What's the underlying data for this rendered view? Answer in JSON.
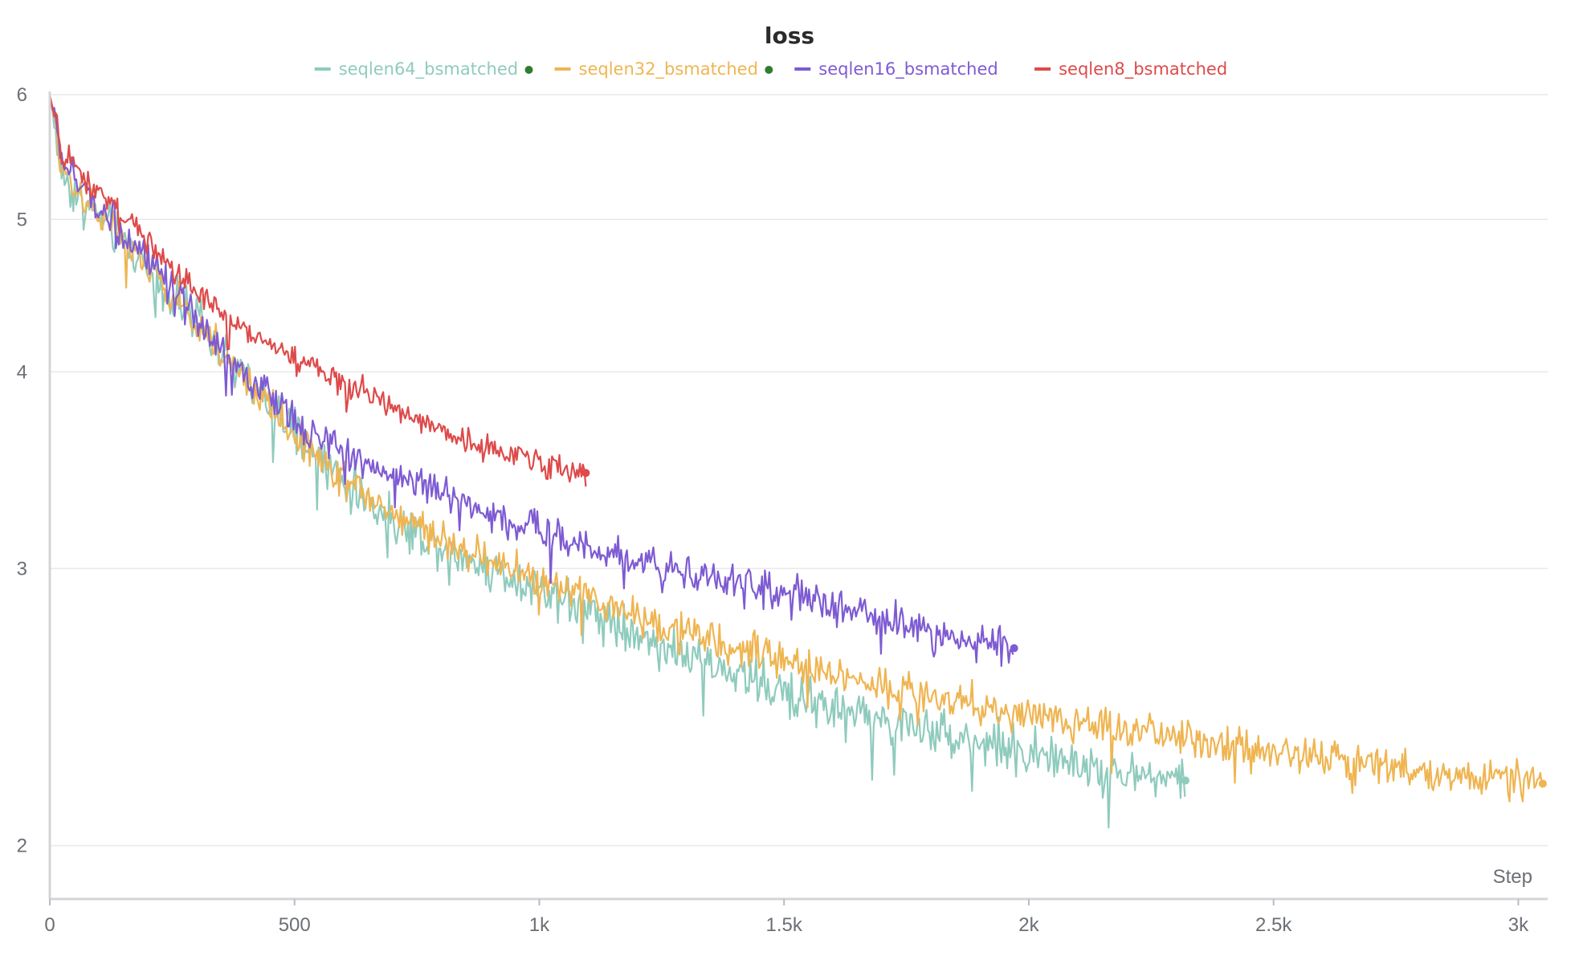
{
  "chart_data": {
    "type": "line",
    "title": "loss",
    "xlabel": "Step",
    "ylabel": "",
    "x_scale": "linear",
    "y_scale": "log",
    "xlim": [
      0,
      3060
    ],
    "ylim": [
      1.85,
      6
    ],
    "x_ticks": [
      {
        "value": 0,
        "label": "0"
      },
      {
        "value": 500,
        "label": "500"
      },
      {
        "value": 1000,
        "label": "1k"
      },
      {
        "value": 1500,
        "label": "1.5k"
      },
      {
        "value": 2000,
        "label": "2k"
      },
      {
        "value": 2500,
        "label": "2.5k"
      },
      {
        "value": 3000,
        "label": "3k"
      }
    ],
    "y_ticks": [
      {
        "value": 2,
        "label": "2"
      },
      {
        "value": 3,
        "label": "3"
      },
      {
        "value": 4,
        "label": "4"
      },
      {
        "value": 5,
        "label": "5"
      },
      {
        "value": 6,
        "label": "6"
      }
    ],
    "grid": true,
    "legend_position": "top-center",
    "series": [
      {
        "name": "seqlen64_bsmatched",
        "color": "#8fcbbd",
        "legend_dot_color": "#2e7d32",
        "x": [
          0,
          25,
          50,
          100,
          150,
          200,
          250,
          300,
          400,
          500,
          600,
          700,
          800,
          900,
          1000,
          1100,
          1200,
          1300,
          1400,
          1500,
          1600,
          1700,
          1800,
          1900,
          2000,
          2100,
          2200,
          2320
        ],
        "y": [
          6.0,
          5.35,
          5.2,
          5.02,
          4.85,
          4.65,
          4.45,
          4.3,
          3.95,
          3.65,
          3.4,
          3.22,
          3.1,
          3.0,
          2.92,
          2.83,
          2.73,
          2.64,
          2.57,
          2.5,
          2.45,
          2.4,
          2.37,
          2.33,
          2.29,
          2.25,
          2.22,
          2.2
        ],
        "noise": 0.05
      },
      {
        "name": "seqlen32_bsmatched",
        "color": "#efb552",
        "legend_dot_color": "#2e7d32",
        "x": [
          0,
          25,
          50,
          100,
          150,
          200,
          250,
          300,
          400,
          500,
          600,
          700,
          800,
          900,
          1000,
          1100,
          1200,
          1300,
          1400,
          1500,
          1600,
          1700,
          1800,
          1900,
          2000,
          2200,
          2400,
          2600,
          2800,
          3000,
          3050
        ],
        "y": [
          6.0,
          5.4,
          5.25,
          5.05,
          4.85,
          4.65,
          4.45,
          4.3,
          3.95,
          3.65,
          3.42,
          3.25,
          3.13,
          3.03,
          2.95,
          2.87,
          2.8,
          2.73,
          2.67,
          2.62,
          2.57,
          2.53,
          2.49,
          2.45,
          2.42,
          2.37,
          2.32,
          2.27,
          2.23,
          2.2,
          2.19
        ],
        "noise": 0.04
      },
      {
        "name": "seqlen16_bsmatched",
        "color": "#7e5bd2",
        "legend_dot_color": "#7e5bd2",
        "x": [
          0,
          25,
          50,
          100,
          150,
          200,
          250,
          300,
          400,
          500,
          600,
          700,
          800,
          900,
          1000,
          1100,
          1200,
          1300,
          1400,
          1500,
          1600,
          1700,
          1800,
          1900,
          1970
        ],
        "y": [
          6.0,
          5.45,
          5.3,
          5.1,
          4.9,
          4.7,
          4.5,
          4.3,
          3.98,
          3.72,
          3.55,
          3.45,
          3.35,
          3.25,
          3.17,
          3.1,
          3.04,
          2.99,
          2.94,
          2.89,
          2.84,
          2.79,
          2.74,
          2.7,
          2.67
        ],
        "noise": 0.04
      },
      {
        "name": "seqlen8_bsmatched",
        "color": "#de4a4a",
        "legend_dot_color": "#de4a4a",
        "x": [
          0,
          25,
          50,
          100,
          150,
          200,
          250,
          300,
          400,
          500,
          600,
          700,
          800,
          900,
          1000,
          1050,
          1095
        ],
        "y": [
          6.0,
          5.5,
          5.38,
          5.2,
          5.02,
          4.85,
          4.65,
          4.48,
          4.25,
          4.08,
          3.93,
          3.8,
          3.68,
          3.58,
          3.5,
          3.47,
          3.45
        ],
        "noise": 0.03
      }
    ]
  }
}
